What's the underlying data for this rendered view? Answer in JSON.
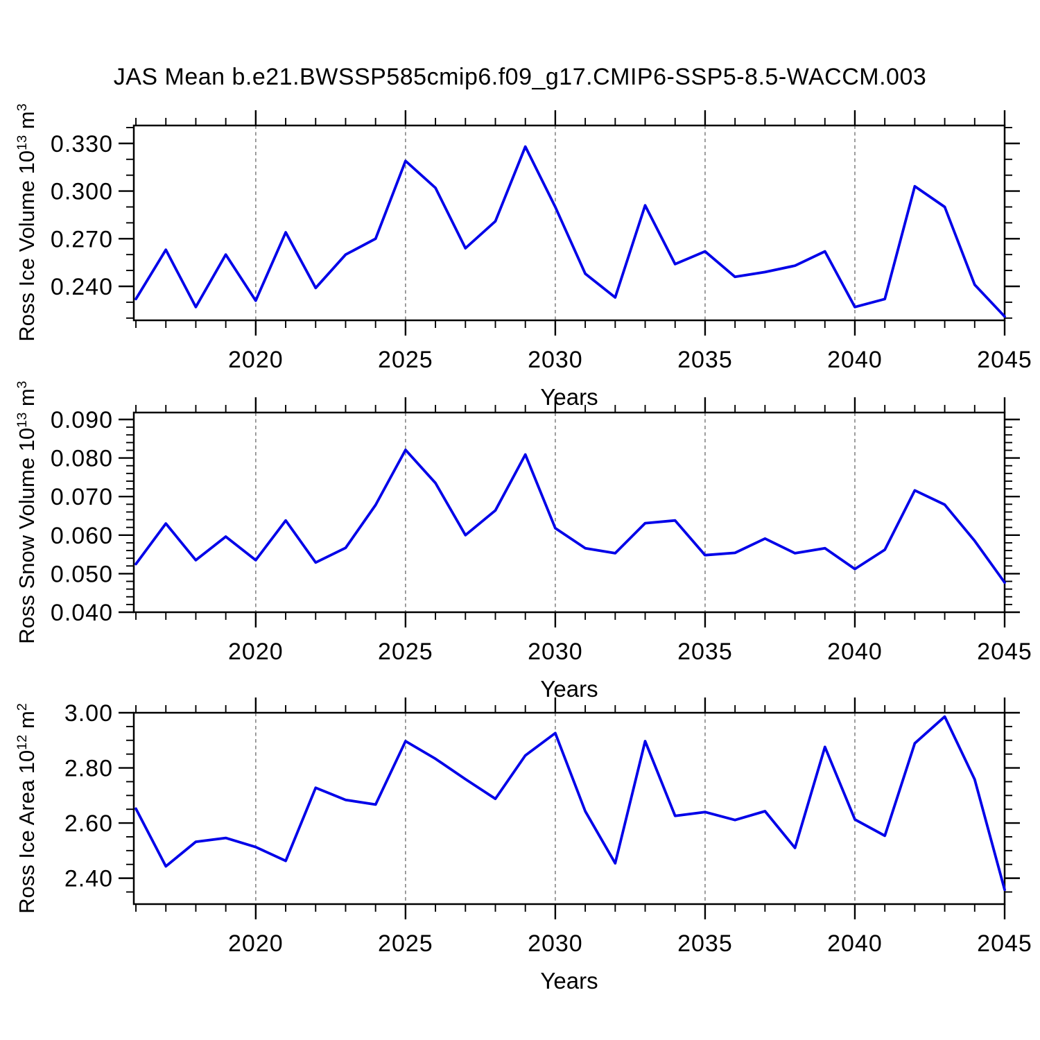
{
  "title": "JAS Mean b.e21.BWSSP585cmip6.f09_g17.CMIP6-SSP5-8.5-WACCM.003",
  "colors": {
    "line": "#0000e8",
    "axis": "#000000",
    "grid": "#8c8c8c",
    "background": "#ffffff",
    "text": "#000000"
  },
  "chart_data": [
    {
      "type": "line",
      "id": "ross-ice-volume",
      "ylabel_plain": "Ross Ice Volume 10^13 m^3",
      "ylabel_parts": {
        "base": "Ross Ice Volume 10",
        "exp": "13",
        "unit": " m",
        "unit_exp": "3"
      },
      "xlabel": "Years",
      "x_range": [
        2015.93,
        2045
      ],
      "y_range": [
        0.2186,
        0.3413
      ],
      "x_major_ticks": [
        2020,
        2025,
        2030,
        2035,
        2040,
        2045
      ],
      "x_tick_labels": [
        "2020",
        "2025",
        "2030",
        "2035",
        "2040",
        "2045"
      ],
      "grid_x": [
        2020,
        2025,
        2030,
        2035,
        2040
      ],
      "y_major_ticks": [
        0.24,
        0.27,
        0.3,
        0.33
      ],
      "y_tick_labels": [
        "0.240",
        "0.270",
        "0.300",
        "0.330"
      ],
      "y_minor_step": 0.01,
      "x": [
        2016,
        2017,
        2018,
        2019,
        2020,
        2021,
        2022,
        2023,
        2024,
        2025,
        2026,
        2027,
        2028,
        2029,
        2030,
        2031,
        2032,
        2033,
        2034,
        2035,
        2036,
        2037,
        2038,
        2039,
        2040,
        2041,
        2042,
        2043,
        2044,
        2045
      ],
      "y": [
        0.232,
        0.263,
        0.227,
        0.26,
        0.231,
        0.274,
        0.239,
        0.26,
        0.27,
        0.319,
        0.302,
        0.264,
        0.281,
        0.328,
        0.29,
        0.248,
        0.233,
        0.291,
        0.254,
        0.262,
        0.246,
        0.249,
        0.253,
        0.262,
        0.227,
        0.232,
        0.303,
        0.29,
        0.241,
        0.221
      ]
    },
    {
      "type": "line",
      "id": "ross-snow-volume",
      "ylabel_plain": "Ross Snow Volume 10^13 m^3",
      "ylabel_parts": {
        "base": "Ross Snow Volume 10",
        "exp": "13",
        "unit": " m",
        "unit_exp": "3"
      },
      "xlabel": "Years",
      "x_range": [
        2015.93,
        2045
      ],
      "y_range": [
        0.04,
        0.0918
      ],
      "x_major_ticks": [
        2020,
        2025,
        2030,
        2035,
        2040,
        2045
      ],
      "x_tick_labels": [
        "2020",
        "2025",
        "2030",
        "2035",
        "2040",
        "2045"
      ],
      "grid_x": [
        2020,
        2025,
        2030,
        2035,
        2040
      ],
      "y_major_ticks": [
        0.04,
        0.05,
        0.06,
        0.07,
        0.08,
        0.09
      ],
      "y_tick_labels": [
        "0.040",
        "0.050",
        "0.060",
        "0.070",
        "0.080",
        "0.090"
      ],
      "y_minor_step": 0.002,
      "x": [
        2016,
        2017,
        2018,
        2019,
        2020,
        2021,
        2022,
        2023,
        2024,
        2025,
        2026,
        2027,
        2028,
        2029,
        2030,
        2031,
        2032,
        2033,
        2034,
        2035,
        2036,
        2037,
        2038,
        2039,
        2040,
        2041,
        2042,
        2043,
        2044,
        2045
      ],
      "y": [
        0.0525,
        0.063,
        0.0535,
        0.0596,
        0.0535,
        0.0638,
        0.0529,
        0.0567,
        0.0678,
        0.0821,
        0.0735,
        0.06,
        0.0664,
        0.0809,
        0.0618,
        0.0566,
        0.0553,
        0.0631,
        0.0638,
        0.0548,
        0.0554,
        0.0591,
        0.0553,
        0.0566,
        0.0512,
        0.0562,
        0.0716,
        0.0679,
        0.0585,
        0.0477
      ]
    },
    {
      "type": "line",
      "id": "ross-ice-area",
      "ylabel_plain": "Ross Ice Area 10^12 m^2",
      "ylabel_parts": {
        "base": "Ross Ice Area 10",
        "exp": "12",
        "unit": " m",
        "unit_exp": "2"
      },
      "xlabel": "Years",
      "x_range": [
        2015.93,
        2045
      ],
      "y_range": [
        2.306,
        3.0
      ],
      "x_major_ticks": [
        2020,
        2025,
        2030,
        2035,
        2040,
        2045
      ],
      "x_tick_labels": [
        "2020",
        "2025",
        "2030",
        "2035",
        "2040",
        "2045"
      ],
      "grid_x": [
        2020,
        2025,
        2030,
        2035,
        2040
      ],
      "y_major_ticks": [
        2.4,
        2.6,
        2.8,
        3.0
      ],
      "y_tick_labels": [
        "2.40",
        "2.60",
        "2.80",
        "3.00"
      ],
      "y_minor_step": 0.05,
      "x": [
        2016,
        2017,
        2018,
        2019,
        2020,
        2021,
        2022,
        2023,
        2024,
        2025,
        2026,
        2027,
        2028,
        2029,
        2030,
        2031,
        2032,
        2033,
        2034,
        2035,
        2036,
        2037,
        2038,
        2039,
        2040,
        2041,
        2042,
        2043,
        2044,
        2045
      ],
      "y": [
        2.652,
        2.443,
        2.532,
        2.546,
        2.513,
        2.463,
        2.728,
        2.684,
        2.667,
        2.897,
        2.833,
        2.759,
        2.688,
        2.845,
        2.926,
        2.643,
        2.454,
        2.897,
        2.626,
        2.64,
        2.611,
        2.643,
        2.51,
        2.876,
        2.613,
        2.554,
        2.889,
        2.986,
        2.758,
        2.358
      ]
    }
  ]
}
